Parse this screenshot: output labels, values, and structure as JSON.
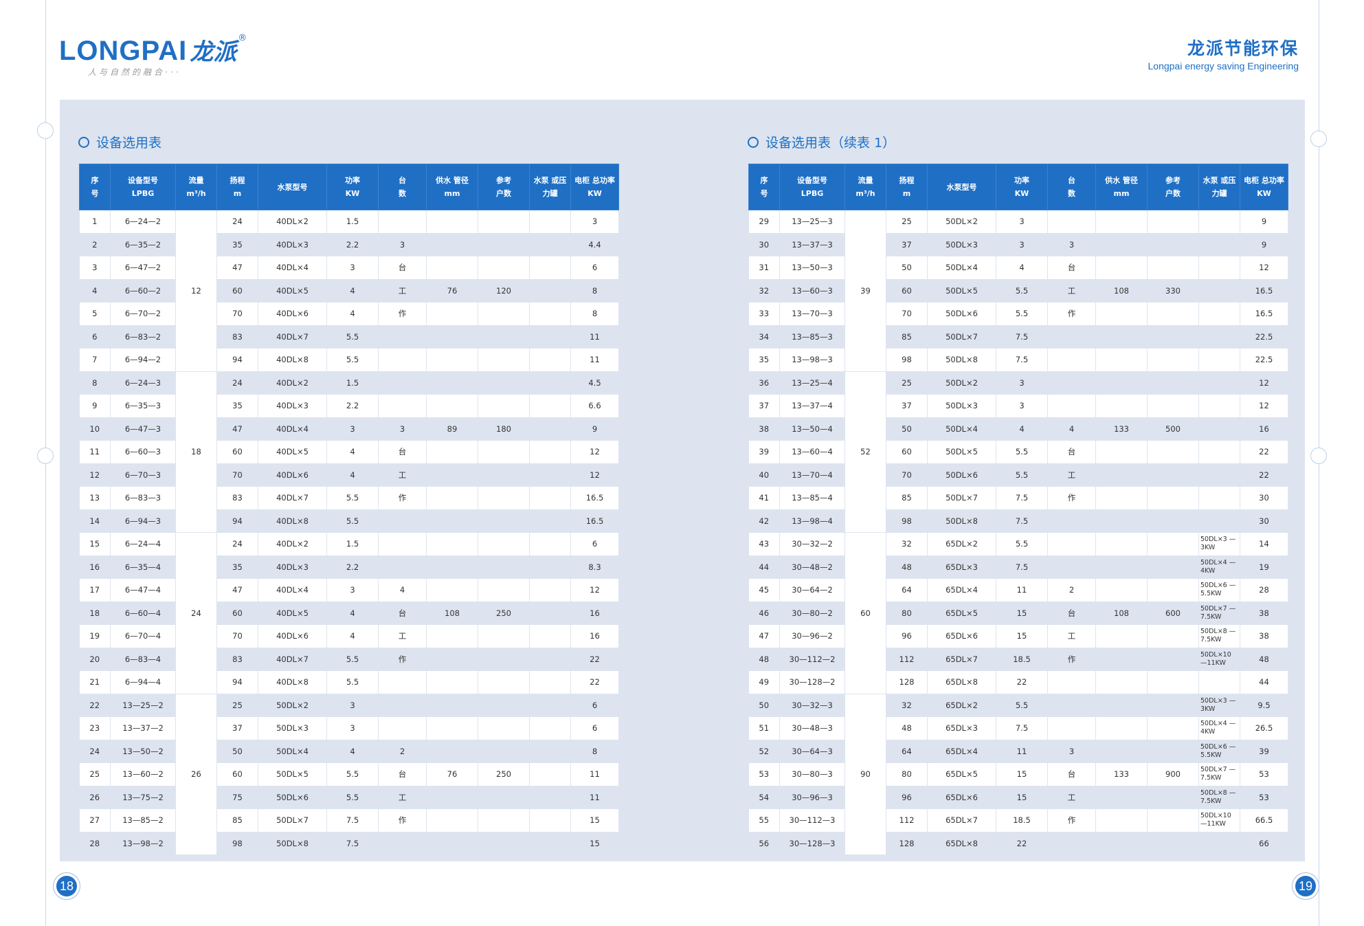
{
  "header": {
    "logo_text": "LONGPAI",
    "logo_cn": "龙派",
    "logo_reg": "®",
    "slogan": "人与自然的融合···",
    "brand_cn": "龙派节能环保",
    "brand_en": "Longpai energy saving Engineering"
  },
  "page_left": "18",
  "page_right": "19",
  "tables": [
    {
      "title": "设备选用表",
      "columns": [
        {
          "top": "序",
          "bottom": "号"
        },
        {
          "top": "设备型号",
          "bottom": "LPBG"
        },
        {
          "top": "流量",
          "bottom": "m³/h"
        },
        {
          "top": "扬程",
          "bottom": "m"
        },
        {
          "top": "水泵型号",
          "bottom": ""
        },
        {
          "top": "功率",
          "bottom": "KW"
        },
        {
          "top": "台",
          "bottom": "数"
        },
        {
          "top": "供水 管径",
          "bottom": "mm"
        },
        {
          "top": "参考",
          "bottom": "户数"
        },
        {
          "top": "水泵 或压 力罐",
          "bottom": ""
        },
        {
          "top": "电柜 总功率",
          "bottom": "KW"
        }
      ],
      "flow_groups": [
        "12",
        "18",
        "24",
        "26"
      ],
      "rows": [
        [
          "1",
          "6—24—2",
          "24",
          "40DL×2",
          "1.5",
          "",
          "",
          "",
          "",
          "3"
        ],
        [
          "2",
          "6—35—2",
          "35",
          "40DL×3",
          "2.2",
          "3",
          "",
          "",
          "",
          "4.4"
        ],
        [
          "3",
          "6—47—2",
          "47",
          "40DL×4",
          "3",
          "台",
          "",
          "",
          "",
          "6"
        ],
        [
          "4",
          "6—60—2",
          "60",
          "40DL×5",
          "4",
          "工",
          "76",
          "120",
          "",
          "8"
        ],
        [
          "5",
          "6—70—2",
          "70",
          "40DL×6",
          "4",
          "作",
          "",
          "",
          "",
          "8"
        ],
        [
          "6",
          "6—83—2",
          "83",
          "40DL×7",
          "5.5",
          "",
          "",
          "",
          "",
          "11"
        ],
        [
          "7",
          "6—94—2",
          "94",
          "40DL×8",
          "5.5",
          "",
          "",
          "",
          "",
          "11"
        ],
        [
          "8",
          "6—24—3",
          "24",
          "40DL×2",
          "1.5",
          "",
          "",
          "",
          "",
          "4.5"
        ],
        [
          "9",
          "6—35—3",
          "35",
          "40DL×3",
          "2.2",
          "",
          "",
          "",
          "",
          "6.6"
        ],
        [
          "10",
          "6—47—3",
          "47",
          "40DL×4",
          "3",
          "3",
          "89",
          "180",
          "",
          "9"
        ],
        [
          "11",
          "6—60—3",
          "60",
          "40DL×5",
          "4",
          "台",
          "",
          "",
          "",
          "12"
        ],
        [
          "12",
          "6—70—3",
          "70",
          "40DL×6",
          "4",
          "工",
          "",
          "",
          "",
          "12"
        ],
        [
          "13",
          "6—83—3",
          "83",
          "40DL×7",
          "5.5",
          "作",
          "",
          "",
          "",
          "16.5"
        ],
        [
          "14",
          "6—94—3",
          "94",
          "40DL×8",
          "5.5",
          "",
          "",
          "",
          "",
          "16.5"
        ],
        [
          "15",
          "6—24—4",
          "24",
          "40DL×2",
          "1.5",
          "",
          "",
          "",
          "",
          "6"
        ],
        [
          "16",
          "6—35—4",
          "35",
          "40DL×3",
          "2.2",
          "",
          "",
          "",
          "",
          "8.3"
        ],
        [
          "17",
          "6—47—4",
          "47",
          "40DL×4",
          "3",
          "4",
          "",
          "",
          "",
          "12"
        ],
        [
          "18",
          "6—60—4",
          "60",
          "40DL×5",
          "4",
          "台",
          "108",
          "250",
          "",
          "16"
        ],
        [
          "19",
          "6—70—4",
          "70",
          "40DL×6",
          "4",
          "工",
          "",
          "",
          "",
          "16"
        ],
        [
          "20",
          "6—83—4",
          "83",
          "40DL×7",
          "5.5",
          "作",
          "",
          "",
          "",
          "22"
        ],
        [
          "21",
          "6—94—4",
          "94",
          "40DL×8",
          "5.5",
          "",
          "",
          "",
          "",
          "22"
        ],
        [
          "22",
          "13—25—2",
          "25",
          "50DL×2",
          "3",
          "",
          "",
          "",
          "",
          "6"
        ],
        [
          "23",
          "13—37—2",
          "37",
          "50DL×3",
          "3",
          "",
          "",
          "",
          "",
          "6"
        ],
        [
          "24",
          "13—50—2",
          "50",
          "50DL×4",
          "4",
          "2",
          "",
          "",
          "",
          "8"
        ],
        [
          "25",
          "13—60—2",
          "60",
          "50DL×5",
          "5.5",
          "台",
          "76",
          "250",
          "",
          "11"
        ],
        [
          "26",
          "13—75—2",
          "75",
          "50DL×6",
          "5.5",
          "工",
          "",
          "",
          "",
          "11"
        ],
        [
          "27",
          "13—85—2",
          "85",
          "50DL×7",
          "7.5",
          "作",
          "",
          "",
          "",
          "15"
        ],
        [
          "28",
          "13—98—2",
          "98",
          "50DL×8",
          "7.5",
          "",
          "",
          "",
          "",
          "15"
        ]
      ]
    },
    {
      "title": "设备选用表（续表 1）",
      "columns": [
        {
          "top": "序",
          "bottom": "号"
        },
        {
          "top": "设备型号",
          "bottom": "LPBG"
        },
        {
          "top": "流量",
          "bottom": "m³/h"
        },
        {
          "top": "扬程",
          "bottom": "m"
        },
        {
          "top": "水泵型号",
          "bottom": ""
        },
        {
          "top": "功率",
          "bottom": "KW"
        },
        {
          "top": "台",
          "bottom": "数"
        },
        {
          "top": "供水 管径",
          "bottom": "mm"
        },
        {
          "top": "参考",
          "bottom": "户数"
        },
        {
          "top": "水泵 或压 力罐",
          "bottom": ""
        },
        {
          "top": "电柜 总功率",
          "bottom": "KW"
        }
      ],
      "flow_groups": [
        "39",
        "52",
        "60",
        "90"
      ],
      "rows": [
        [
          "29",
          "13—25—3",
          "25",
          "50DL×2",
          "3",
          "",
          "",
          "",
          "",
          "9"
        ],
        [
          "30",
          "13—37—3",
          "37",
          "50DL×3",
          "3",
          "3",
          "",
          "",
          "",
          "9"
        ],
        [
          "31",
          "13—50—3",
          "50",
          "50DL×4",
          "4",
          "台",
          "",
          "",
          "",
          "12"
        ],
        [
          "32",
          "13—60—3",
          "60",
          "50DL×5",
          "5.5",
          "工",
          "108",
          "330",
          "",
          "16.5"
        ],
        [
          "33",
          "13—70—3",
          "70",
          "50DL×6",
          "5.5",
          "作",
          "",
          "",
          "",
          "16.5"
        ],
        [
          "34",
          "13—85—3",
          "85",
          "50DL×7",
          "7.5",
          "",
          "",
          "",
          "",
          "22.5"
        ],
        [
          "35",
          "13—98—3",
          "98",
          "50DL×8",
          "7.5",
          "",
          "",
          "",
          "",
          "22.5"
        ],
        [
          "36",
          "13—25—4",
          "25",
          "50DL×2",
          "3",
          "",
          "",
          "",
          "",
          "12"
        ],
        [
          "37",
          "13—37—4",
          "37",
          "50DL×3",
          "3",
          "",
          "",
          "",
          "",
          "12"
        ],
        [
          "38",
          "13—50—4",
          "50",
          "50DL×4",
          "4",
          "4",
          "133",
          "500",
          "",
          "16"
        ],
        [
          "39",
          "13—60—4",
          "60",
          "50DL×5",
          "5.5",
          "台",
          "",
          "",
          "",
          "22"
        ],
        [
          "40",
          "13—70—4",
          "70",
          "50DL×6",
          "5.5",
          "工",
          "",
          "",
          "",
          "22"
        ],
        [
          "41",
          "13—85—4",
          "85",
          "50DL×7",
          "7.5",
          "作",
          "",
          "",
          "",
          "30"
        ],
        [
          "42",
          "13—98—4",
          "98",
          "50DL×8",
          "7.5",
          "",
          "",
          "",
          "",
          "30"
        ],
        [
          "43",
          "30—32—2",
          "32",
          "65DL×2",
          "5.5",
          "",
          "",
          "",
          "50DL×3 —3KW",
          "14"
        ],
        [
          "44",
          "30—48—2",
          "48",
          "65DL×3",
          "7.5",
          "",
          "",
          "",
          "50DL×4 —4KW",
          "19"
        ],
        [
          "45",
          "30—64—2",
          "64",
          "65DL×4",
          "11",
          "2",
          "",
          "",
          "50DL×6 —5.5KW",
          "28"
        ],
        [
          "46",
          "30—80—2",
          "80",
          "65DL×5",
          "15",
          "台",
          "108",
          "600",
          "50DL×7 —7.5KW",
          "38"
        ],
        [
          "47",
          "30—96—2",
          "96",
          "65DL×6",
          "15",
          "工",
          "",
          "",
          "50DL×8 —7.5KW",
          "38"
        ],
        [
          "48",
          "30—112—2",
          "112",
          "65DL×7",
          "18.5",
          "作",
          "",
          "",
          "50DL×10 —11KW",
          "48"
        ],
        [
          "49",
          "30—128—2",
          "128",
          "65DL×8",
          "22",
          "",
          "",
          "",
          "",
          "44"
        ],
        [
          "50",
          "30—32—3",
          "32",
          "65DL×2",
          "5.5",
          "",
          "",
          "",
          "50DL×3 —3KW",
          "9.5"
        ],
        [
          "51",
          "30—48—3",
          "48",
          "65DL×3",
          "7.5",
          "",
          "",
          "",
          "50DL×4 —4KW",
          "26.5"
        ],
        [
          "52",
          "30—64—3",
          "64",
          "65DL×4",
          "11",
          "3",
          "",
          "",
          "50DL×6 —5.5KW",
          "39"
        ],
        [
          "53",
          "30—80—3",
          "80",
          "65DL×5",
          "15",
          "台",
          "133",
          "900",
          "50DL×7 —7.5KW",
          "53"
        ],
        [
          "54",
          "30—96—3",
          "96",
          "65DL×6",
          "15",
          "工",
          "",
          "",
          "50DL×8 —7.5KW",
          "53"
        ],
        [
          "55",
          "30—112—3",
          "112",
          "65DL×7",
          "18.5",
          "作",
          "",
          "",
          "50DL×10 —11KW",
          "66.5"
        ],
        [
          "56",
          "30—128—3",
          "128",
          "65DL×8",
          "22",
          "",
          "",
          "",
          "",
          "66"
        ]
      ]
    }
  ]
}
